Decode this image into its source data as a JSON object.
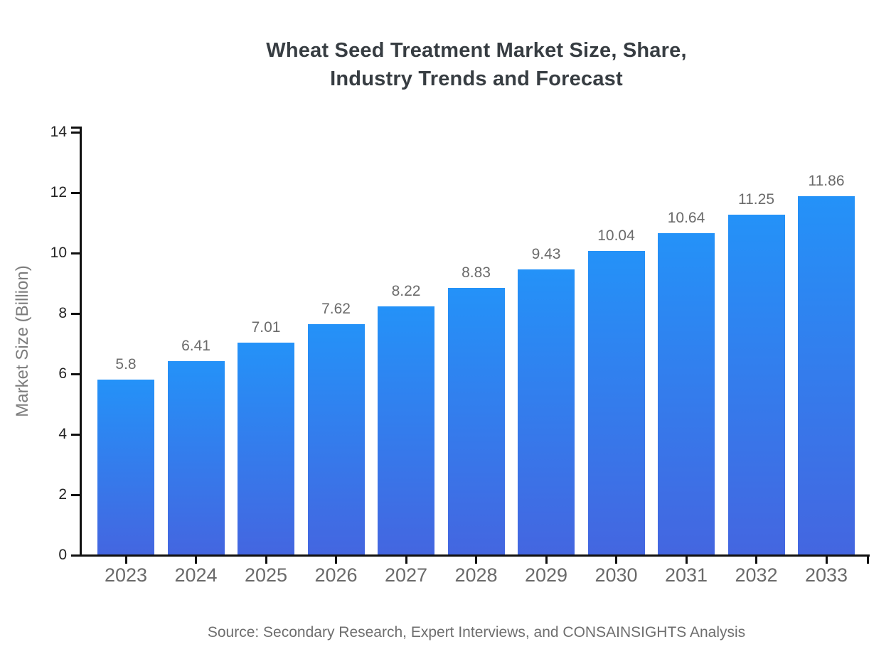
{
  "title": {
    "line1": "Wheat Seed Treatment Market Size, Share,",
    "line2": "Industry Trends and Forecast"
  },
  "source": "Source: Secondary Research, Expert Interviews, and CONSAINSIGHTS Analysis",
  "chart_data": {
    "type": "bar",
    "title": "Wheat Seed Treatment Market Size, Share, Industry Trends and Forecast",
    "categories": [
      "2023",
      "2024",
      "2025",
      "2026",
      "2027",
      "2028",
      "2029",
      "2030",
      "2031",
      "2032",
      "2033"
    ],
    "values": [
      5.8,
      6.41,
      7.01,
      7.62,
      8.22,
      8.83,
      9.43,
      10.04,
      10.64,
      11.25,
      11.86
    ],
    "value_labels": [
      "5.8",
      "6.41",
      "7.01",
      "7.62",
      "8.22",
      "8.83",
      "9.43",
      "10.04",
      "10.64",
      "11.25",
      "11.86"
    ],
    "xlabel": "",
    "ylabel": "Market Size (Billion)",
    "ylim": [
      0,
      14
    ],
    "yticks": [
      0,
      2,
      4,
      6,
      8,
      10,
      12,
      14
    ],
    "grid": false,
    "legend": null,
    "colors": {
      "bar_gradient_top": "#2492f8",
      "bar_gradient_bottom": "#4466e0",
      "axis": "#111111",
      "value_label": "#6b6b6b",
      "x_tick_label": "#6a6a6a",
      "y_tick_label": "#222222",
      "title": "#373d42",
      "source": "#6e6e6e",
      "y_axis_title": "#7d7d7d"
    }
  }
}
